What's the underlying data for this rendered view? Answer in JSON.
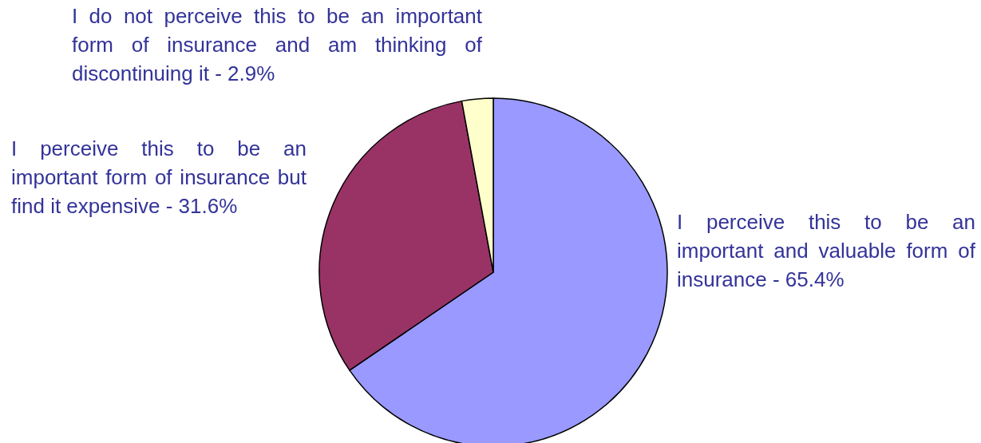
{
  "chart_data": {
    "type": "pie",
    "categories": [
      "I perceive this to be an important and valuable form of insurance - 65.4%",
      "I perceive this to be an important form of insurance but find it expensive - 31.6%",
      "I do not perceive this to be an important form of insurance and am thinking of discontinuing it - 2.9%"
    ],
    "values": [
      65.4,
      31.6,
      2.9
    ],
    "colors": [
      "#9999ff",
      "#993366",
      "#ffffcc"
    ],
    "legend": false
  }
}
